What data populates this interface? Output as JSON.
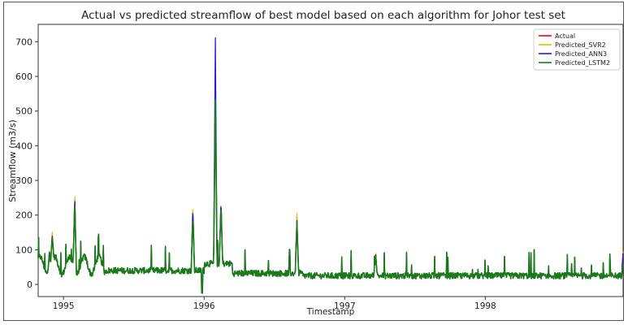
{
  "chart_data": {
    "type": "line",
    "title": "Actual vs predicted streamflow of best model based on each algorithm for Johor test set",
    "xlabel": "Timestamp",
    "ylabel": "Streamflow (m3/s)",
    "xlim": [
      1994.82,
      1998.98
    ],
    "ylim": [
      -35,
      750
    ],
    "yticks": [
      0,
      100,
      200,
      300,
      400,
      500,
      600,
      700
    ],
    "xticks": [
      {
        "value": 1995,
        "label": "1995"
      },
      {
        "value": 1996,
        "label": "1996"
      },
      {
        "value": 1997,
        "label": "1997"
      },
      {
        "value": 1998,
        "label": "1998"
      }
    ],
    "legend_position": "top-right",
    "grid": false,
    "series": [
      {
        "name": "Actual",
        "color": "#ff0000",
        "width": 1.2,
        "peaks": [
          [
            1994.87,
            12
          ],
          [
            1994.9,
            95
          ],
          [
            1994.92,
            145
          ],
          [
            1995.08,
            260
          ],
          [
            1995.92,
            225
          ],
          [
            1996.08,
            540
          ],
          [
            1996.12,
            240
          ],
          [
            1996.66,
            195
          ],
          [
            1997.22,
            90
          ],
          [
            1998.98,
            100
          ]
        ]
      },
      {
        "name": "Predicted_SVR2",
        "color": "#c8c800",
        "width": 1.2,
        "peaks": [
          [
            1994.87,
            12
          ],
          [
            1994.9,
            100
          ],
          [
            1994.92,
            152
          ],
          [
            1995.08,
            270
          ],
          [
            1995.92,
            232
          ],
          [
            1996.08,
            540
          ],
          [
            1996.12,
            245
          ],
          [
            1996.66,
            205
          ],
          [
            1997.22,
            93
          ],
          [
            1998.98,
            95
          ]
        ]
      },
      {
        "name": "Predicted_ANN3",
        "color": "#1f1fd6",
        "width": 1.3,
        "peaks": [
          [
            1994.87,
            12
          ],
          [
            1994.9,
            95
          ],
          [
            1994.92,
            140
          ],
          [
            1995.08,
            255
          ],
          [
            1995.92,
            220
          ],
          [
            1996.08,
            715
          ],
          [
            1996.12,
            240
          ],
          [
            1996.66,
            185
          ],
          [
            1997.22,
            88
          ],
          [
            1998.98,
            90
          ]
        ]
      },
      {
        "name": "Predicted_LSTM2",
        "color": "#1a7a1a",
        "width": 1.6,
        "peaks": [
          [
            1994.87,
            10
          ],
          [
            1994.9,
            90
          ],
          [
            1994.92,
            135
          ],
          [
            1995.08,
            240
          ],
          [
            1995.92,
            195
          ],
          [
            1996.08,
            535
          ],
          [
            1996.12,
            230
          ],
          [
            1996.66,
            180
          ],
          [
            1997.22,
            85
          ],
          [
            1998.98,
            60
          ]
        ]
      }
    ]
  }
}
